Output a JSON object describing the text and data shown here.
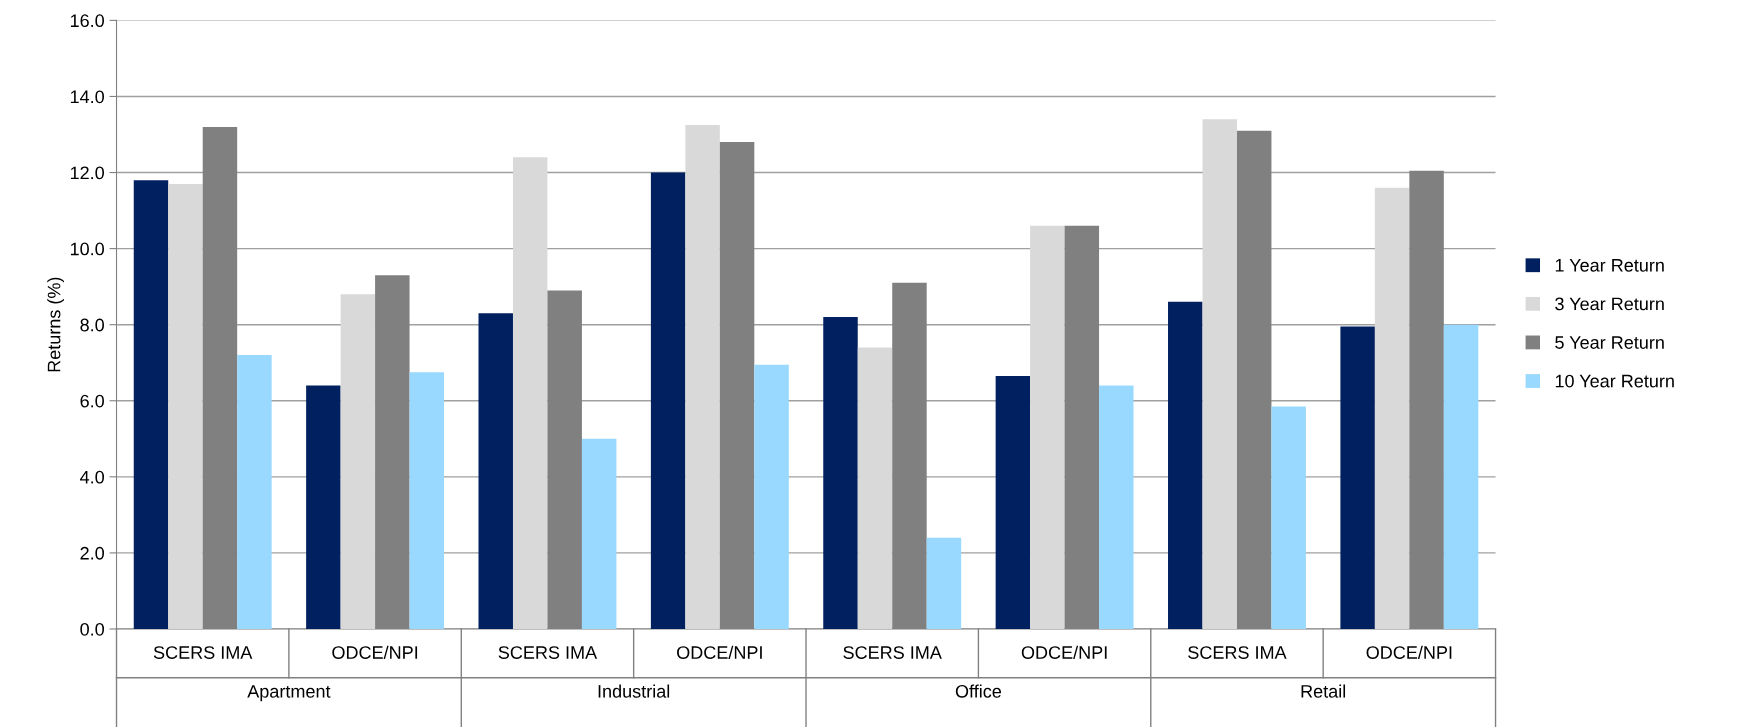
{
  "chart_data": {
    "type": "bar",
    "ylabel": "Returns (%)",
    "categories": [
      "SCERS IMA",
      "ODCE/NPI",
      "SCERS IMA",
      "ODCE/NPI",
      "SCERS IMA",
      "ODCE/NPI",
      "SCERS IMA",
      "ODCE/NPI"
    ],
    "annotations": [
      "Apartment",
      "Industrial",
      "Office",
      "Retail"
    ],
    "series": [
      {
        "name": "1 Year Return",
        "color": "#002060",
        "values": [
          11.8,
          6.4,
          8.3,
          12.0,
          8.2,
          6.65,
          8.6,
          7.95
        ]
      },
      {
        "name": "3 Year Return",
        "color": "#d9d9d9",
        "values": [
          11.7,
          8.8,
          12.4,
          13.25,
          7.4,
          10.6,
          13.4,
          11.6
        ]
      },
      {
        "name": "5 Year Return",
        "color": "#808080",
        "values": [
          13.2,
          9.3,
          8.9,
          12.8,
          9.1,
          10.6,
          13.1,
          12.05
        ]
      },
      {
        "name": "10 Year Return",
        "color": "#99d9ff",
        "values": [
          7.2,
          6.75,
          5.0,
          6.95,
          2.4,
          6.4,
          5.85,
          8.0
        ]
      }
    ],
    "ylim": [
      0,
      16
    ],
    "yticks": [
      {
        "value": 0,
        "label": "0.0"
      },
      {
        "value": 2,
        "label": "2.0"
      },
      {
        "value": 4,
        "label": "4.0"
      },
      {
        "value": 6,
        "label": "6.0"
      },
      {
        "value": 8,
        "label": "8.0"
      },
      {
        "value": 10,
        "label": "10.0"
      },
      {
        "value": 12,
        "label": "12.0"
      },
      {
        "value": 14,
        "label": "14.0"
      },
      {
        "value": 16,
        "label": "16.0"
      }
    ],
    "grid": "y",
    "legend": "right"
  }
}
